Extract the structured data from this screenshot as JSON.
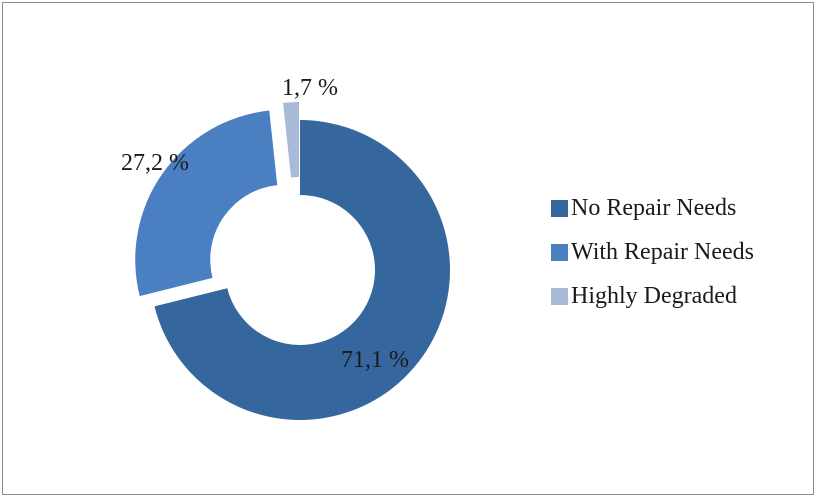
{
  "chart_data": {
    "type": "pie",
    "subtype": "donut",
    "exploded": true,
    "legend_position": "right",
    "series": [
      {
        "name": "No Repair Needs",
        "value": 71.1,
        "label": "71,1 %",
        "color": "#35679e"
      },
      {
        "name": "With Repair Needs",
        "value": 27.2,
        "label": "27,2 %",
        "color": "#4a7fc1"
      },
      {
        "name": "Highly Degraded",
        "value": 1.7,
        "label": "1,7 %",
        "color": "#a8bad6"
      }
    ]
  },
  "legend": {
    "items": [
      {
        "label": "No Repair Needs",
        "color": "#35679e"
      },
      {
        "label": "With Repair Needs",
        "color": "#4a7fc1"
      },
      {
        "label": "Highly Degraded",
        "color": "#a8bad6"
      }
    ]
  }
}
